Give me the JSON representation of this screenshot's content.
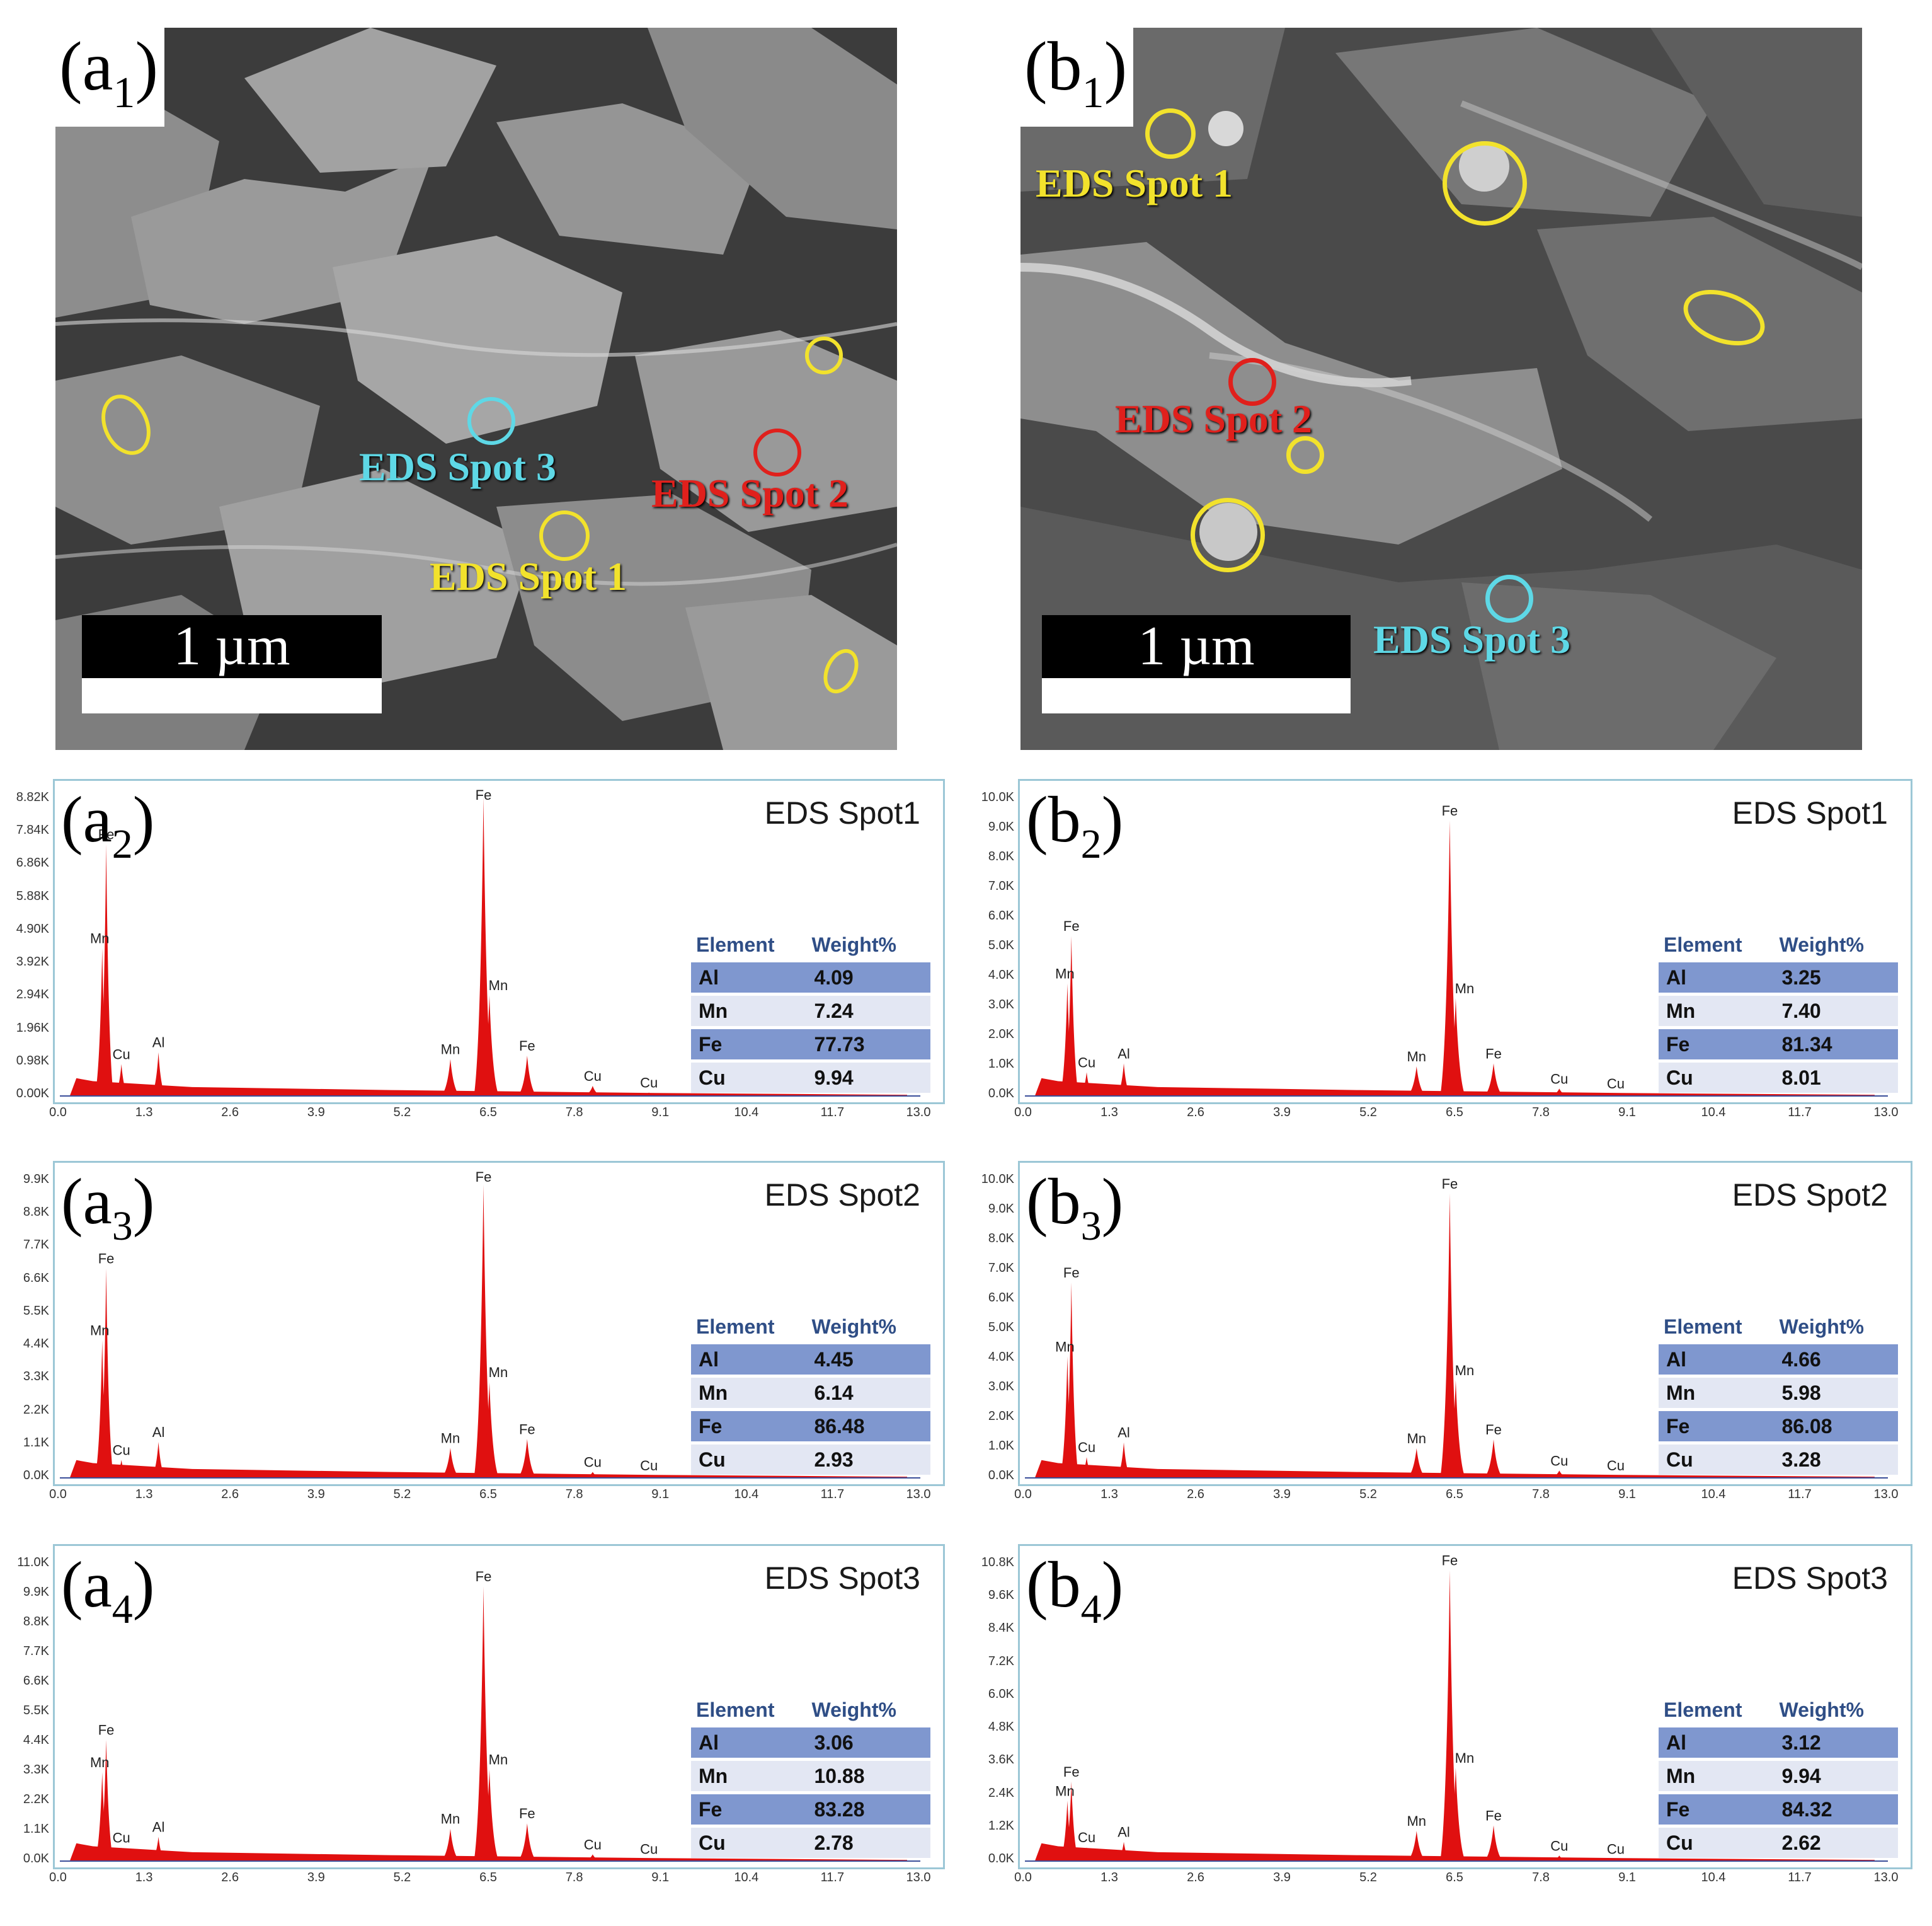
{
  "sem_panels": [
    {
      "id": "a1",
      "label_main": "(a",
      "label_sub": "1",
      "label_close": ")",
      "scale_text": "1 µm",
      "spots": [
        {
          "text": "EDS Spot 3",
          "color": "#5ed8e6"
        },
        {
          "text": "EDS Spot 2",
          "color": "#e0201c"
        },
        {
          "text": "EDS Spot 1",
          "color": "#f2e22c"
        }
      ]
    },
    {
      "id": "b1",
      "label_main": "(b",
      "label_sub": "1",
      "label_close": ")",
      "scale_text": "1 µm",
      "spots": [
        {
          "text": "EDS Spot 1",
          "color": "#f2e22c"
        },
        {
          "text": "EDS Spot 2",
          "color": "#e0201c"
        },
        {
          "text": "EDS Spot 3",
          "color": "#5ed8e6"
        }
      ]
    }
  ],
  "eds_panels": [
    {
      "id": "a2",
      "label_main": "(a",
      "label_sub": "2",
      "label_close": ")",
      "title": "EDS Spot1",
      "yticks": [
        "8.82K",
        "7.84K",
        "6.86K",
        "5.88K",
        "4.90K",
        "3.92K",
        "2.94K",
        "1.96K",
        "0.98K",
        "0.00K"
      ],
      "ymax": 8.82,
      "xticks": [
        "0.0",
        "1.3",
        "2.6",
        "3.9",
        "5.2",
        "6.5",
        "7.8",
        "9.1",
        "10.4",
        "11.7",
        "13.0"
      ],
      "peaks": [
        {
          "x": 0.7,
          "y": 7.5,
          "l": "Fe"
        },
        {
          "x": 0.64,
          "y": 4.4,
          "l": "Mn"
        },
        {
          "x": 0.93,
          "y": 0.95,
          "l": "Cu"
        },
        {
          "x": 1.49,
          "y": 1.3,
          "l": "Al"
        },
        {
          "x": 5.9,
          "y": 1.1,
          "l": "Mn"
        },
        {
          "x": 6.4,
          "y": 8.9,
          "l": "Fe"
        },
        {
          "x": 6.49,
          "y": 3.0,
          "l": "Mn"
        },
        {
          "x": 7.06,
          "y": 1.2,
          "l": "Fe"
        },
        {
          "x": 8.05,
          "y": 0.3,
          "l": "Cu"
        },
        {
          "x": 8.9,
          "y": 0.1,
          "l": "Cu"
        }
      ],
      "table": {
        "headers": [
          "Element",
          "Weight%"
        ],
        "rows": [
          [
            "Al",
            "4.09"
          ],
          [
            "Mn",
            "7.24"
          ],
          [
            "Fe",
            "77.73"
          ],
          [
            "Cu",
            "9.94"
          ]
        ]
      }
    },
    {
      "id": "b2",
      "label_main": "(b",
      "label_sub": "2",
      "label_close": ")",
      "title": "EDS Spot1",
      "yticks": [
        "10.0K",
        "9.0K",
        "8.0K",
        "7.0K",
        "6.0K",
        "5.0K",
        "4.0K",
        "3.0K",
        "2.0K",
        "1.0K",
        "0.0K"
      ],
      "ymax": 10.0,
      "xticks": [
        "0.0",
        "1.3",
        "2.6",
        "3.9",
        "5.2",
        "6.5",
        "7.8",
        "9.1",
        "10.4",
        "11.7",
        "13.0"
      ],
      "peaks": [
        {
          "x": 0.7,
          "y": 5.4,
          "l": "Fe"
        },
        {
          "x": 0.64,
          "y": 3.8,
          "l": "Mn"
        },
        {
          "x": 0.93,
          "y": 0.8,
          "l": "Cu"
        },
        {
          "x": 1.49,
          "y": 1.1,
          "l": "Al"
        },
        {
          "x": 5.9,
          "y": 1.0,
          "l": "Mn"
        },
        {
          "x": 6.4,
          "y": 9.3,
          "l": "Fe"
        },
        {
          "x": 6.49,
          "y": 3.3,
          "l": "Mn"
        },
        {
          "x": 7.06,
          "y": 1.1,
          "l": "Fe"
        },
        {
          "x": 8.05,
          "y": 0.25,
          "l": "Cu"
        },
        {
          "x": 8.9,
          "y": 0.08,
          "l": "Cu"
        }
      ],
      "table": {
        "headers": [
          "Element",
          "Weight%"
        ],
        "rows": [
          [
            "Al",
            "3.25"
          ],
          [
            "Mn",
            "7.40"
          ],
          [
            "Fe",
            "81.34"
          ],
          [
            "Cu",
            "8.01"
          ]
        ]
      }
    },
    {
      "id": "a3",
      "label_main": "(a",
      "label_sub": "3",
      "label_close": ")",
      "title": "EDS Spot2",
      "yticks": [
        "9.9K",
        "8.8K",
        "7.7K",
        "6.6K",
        "5.5K",
        "4.4K",
        "3.3K",
        "2.2K",
        "1.1K",
        "0.0K"
      ],
      "ymax": 9.9,
      "xticks": [
        "0.0",
        "1.3",
        "2.6",
        "3.9",
        "5.2",
        "6.5",
        "7.8",
        "9.1",
        "10.4",
        "11.7",
        "13.0"
      ],
      "peaks": [
        {
          "x": 0.7,
          "y": 7.0,
          "l": "Fe"
        },
        {
          "x": 0.64,
          "y": 4.6,
          "l": "Mn"
        },
        {
          "x": 0.93,
          "y": 0.6,
          "l": "Cu"
        },
        {
          "x": 1.49,
          "y": 1.2,
          "l": "Al"
        },
        {
          "x": 5.9,
          "y": 1.0,
          "l": "Mn"
        },
        {
          "x": 6.4,
          "y": 9.8,
          "l": "Fe"
        },
        {
          "x": 6.49,
          "y": 3.2,
          "l": "Mn"
        },
        {
          "x": 7.06,
          "y": 1.3,
          "l": "Fe"
        },
        {
          "x": 8.05,
          "y": 0.2,
          "l": "Cu"
        },
        {
          "x": 8.9,
          "y": 0.08,
          "l": "Cu"
        }
      ],
      "table": {
        "headers": [
          "Element",
          "Weight%"
        ],
        "rows": [
          [
            "Al",
            "4.45"
          ],
          [
            "Mn",
            "6.14"
          ],
          [
            "Fe",
            "86.48"
          ],
          [
            "Cu",
            "2.93"
          ]
        ]
      }
    },
    {
      "id": "b3",
      "label_main": "(b",
      "label_sub": "3",
      "label_close": ")",
      "title": "EDS Spot2",
      "yticks": [
        "10.0K",
        "9.0K",
        "8.0K",
        "7.0K",
        "6.0K",
        "5.0K",
        "4.0K",
        "3.0K",
        "2.0K",
        "1.0K",
        "0.0K"
      ],
      "ymax": 10.0,
      "xticks": [
        "0.0",
        "1.3",
        "2.6",
        "3.9",
        "5.2",
        "6.5",
        "7.8",
        "9.1",
        "10.4",
        "11.7",
        "13.0"
      ],
      "peaks": [
        {
          "x": 0.7,
          "y": 6.6,
          "l": "Fe"
        },
        {
          "x": 0.64,
          "y": 4.1,
          "l": "Mn"
        },
        {
          "x": 0.93,
          "y": 0.7,
          "l": "Cu"
        },
        {
          "x": 1.49,
          "y": 1.2,
          "l": "Al"
        },
        {
          "x": 5.9,
          "y": 1.0,
          "l": "Mn"
        },
        {
          "x": 6.4,
          "y": 9.6,
          "l": "Fe"
        },
        {
          "x": 6.49,
          "y": 3.3,
          "l": "Mn"
        },
        {
          "x": 7.06,
          "y": 1.3,
          "l": "Fe"
        },
        {
          "x": 8.05,
          "y": 0.25,
          "l": "Cu"
        },
        {
          "x": 8.9,
          "y": 0.08,
          "l": "Cu"
        }
      ],
      "table": {
        "headers": [
          "Element",
          "Weight%"
        ],
        "rows": [
          [
            "Al",
            "4.66"
          ],
          [
            "Mn",
            "5.98"
          ],
          [
            "Fe",
            "86.08"
          ],
          [
            "Cu",
            "3.28"
          ]
        ]
      }
    },
    {
      "id": "a4",
      "label_main": "(a",
      "label_sub": "4",
      "label_close": ")",
      "title": "EDS Spot3",
      "yticks": [
        "11.0K",
        "9.9K",
        "8.8K",
        "7.7K",
        "6.6K",
        "5.5K",
        "4.4K",
        "3.3K",
        "2.2K",
        "1.1K",
        "0.0K"
      ],
      "ymax": 11.0,
      "xticks": [
        "0.0",
        "1.3",
        "2.6",
        "3.9",
        "5.2",
        "6.5",
        "7.8",
        "9.1",
        "10.4",
        "11.7",
        "13.0"
      ],
      "peaks": [
        {
          "x": 0.7,
          "y": 4.5,
          "l": "Fe"
        },
        {
          "x": 0.64,
          "y": 3.3,
          "l": "Mn"
        },
        {
          "x": 0.93,
          "y": 0.5,
          "l": "Cu"
        },
        {
          "x": 1.49,
          "y": 0.9,
          "l": "Al"
        },
        {
          "x": 5.9,
          "y": 1.2,
          "l": "Mn"
        },
        {
          "x": 6.4,
          "y": 10.2,
          "l": "Fe"
        },
        {
          "x": 6.49,
          "y": 3.4,
          "l": "Mn"
        },
        {
          "x": 7.06,
          "y": 1.4,
          "l": "Fe"
        },
        {
          "x": 8.05,
          "y": 0.25,
          "l": "Cu"
        },
        {
          "x": 8.9,
          "y": 0.08,
          "l": "Cu"
        }
      ],
      "table": {
        "headers": [
          "Element",
          "Weight%"
        ],
        "rows": [
          [
            "Al",
            "3.06"
          ],
          [
            "Mn",
            "10.88"
          ],
          [
            "Fe",
            "83.28"
          ],
          [
            "Cu",
            "2.78"
          ]
        ]
      }
    },
    {
      "id": "b4",
      "label_main": "(b",
      "label_sub": "4",
      "label_close": ")",
      "title": "EDS Spot3",
      "yticks": [
        "10.8K",
        "9.6K",
        "8.4K",
        "7.2K",
        "6.0K",
        "4.8K",
        "3.6K",
        "2.4K",
        "1.2K",
        "0.0K"
      ],
      "ymax": 10.8,
      "xticks": [
        "0.0",
        "1.3",
        "2.6",
        "3.9",
        "5.2",
        "6.5",
        "7.8",
        "9.1",
        "10.4",
        "11.7",
        "13.0"
      ],
      "peaks": [
        {
          "x": 0.7,
          "y": 2.9,
          "l": "Fe"
        },
        {
          "x": 0.64,
          "y": 2.2,
          "l": "Mn"
        },
        {
          "x": 0.93,
          "y": 0.5,
          "l": "Cu"
        },
        {
          "x": 1.49,
          "y": 0.7,
          "l": "Al"
        },
        {
          "x": 5.9,
          "y": 1.1,
          "l": "Mn"
        },
        {
          "x": 6.4,
          "y": 10.6,
          "l": "Fe"
        },
        {
          "x": 6.49,
          "y": 3.4,
          "l": "Mn"
        },
        {
          "x": 7.06,
          "y": 1.3,
          "l": "Fe"
        },
        {
          "x": 8.05,
          "y": 0.2,
          "l": "Cu"
        },
        {
          "x": 8.9,
          "y": 0.08,
          "l": "Cu"
        }
      ],
      "table": {
        "headers": [
          "Element",
          "Weight%"
        ],
        "rows": [
          [
            "Al",
            "3.12"
          ],
          [
            "Mn",
            "9.94"
          ],
          [
            "Fe",
            "84.32"
          ],
          [
            "Cu",
            "2.62"
          ]
        ]
      }
    }
  ],
  "colors": {
    "peak_fill": "#e01010",
    "frame": "#9cc7d6",
    "header_text": "#2f4e86",
    "row_dark": "#7f97cf",
    "row_light": "#e3e7f3"
  }
}
